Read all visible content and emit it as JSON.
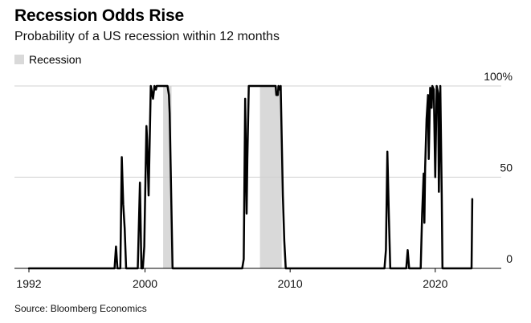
{
  "title": "Recession Odds Rise",
  "subtitle": "Probability of a US recession within 12 months",
  "legend": {
    "recession_label": "Recession"
  },
  "source": "Source: Bloomberg Economics",
  "colors": {
    "line": "#000000",
    "recession": "#d9d9d9",
    "grid": "#d0d0d0",
    "axis": "#000000"
  },
  "chart_data": {
    "type": "line",
    "title": "Recession Odds Rise",
    "subtitle": "Probability of a US recession within 12 months",
    "xlabel": "",
    "ylabel": "",
    "xlim": [
      1992,
      2023.5
    ],
    "ylim": [
      0,
      100
    ],
    "grid": true,
    "x_ticks": [
      1992,
      2000,
      2010,
      2020
    ],
    "x_tick_labels": [
      "1992",
      "2000",
      "2010",
      "2020"
    ],
    "y_ticks": [
      0,
      50,
      100
    ],
    "y_tick_labels": [
      "0",
      "50",
      "100%"
    ],
    "recession_periods": [
      [
        2001.25,
        2001.83
      ],
      [
        2007.92,
        2009.42
      ]
    ],
    "series": [
      {
        "x": [
          1992.0,
          1997.9,
          1998.0,
          1998.1,
          1998.3,
          1998.4,
          1998.5,
          1998.6,
          1998.7,
          1999.5,
          1999.65,
          1999.75,
          1999.85,
          1999.95,
          2000.0,
          2000.1,
          2000.15,
          2000.25,
          2000.4,
          2000.55,
          2000.65,
          2000.75,
          2000.8,
          2000.9,
          2001.0,
          2001.5,
          2001.55,
          2001.65,
          2001.7,
          2001.9,
          2002.0,
          2006.7,
          2006.8,
          2006.9,
          2007.0,
          2007.05,
          2007.15,
          2007.25,
          2007.35,
          2008.0,
          2009.0,
          2009.05,
          2009.15,
          2009.2,
          2009.3,
          2009.35,
          2009.5,
          2009.6,
          2009.7,
          2010.0,
          2016.5,
          2016.6,
          2016.7,
          2016.8,
          2016.9,
          2017.0,
          2018.0,
          2018.1,
          2018.2,
          2018.3,
          2019.0,
          2019.1,
          2019.2,
          2019.25,
          2019.3,
          2019.4,
          2019.5,
          2019.55,
          2019.65,
          2019.75,
          2019.8,
          2019.9,
          2020.0,
          2020.1,
          2020.2,
          2020.25,
          2020.35,
          2020.45,
          2020.5,
          2022.4,
          2022.5,
          2022.55
        ],
        "values": [
          0,
          0,
          12,
          0,
          0,
          61,
          35,
          22,
          0,
          0,
          47,
          0,
          0,
          12,
          35,
          78,
          70,
          40,
          100,
          93,
          100,
          98,
          100,
          100,
          100,
          100,
          100,
          95,
          85,
          0,
          0,
          0,
          5,
          93,
          30,
          60,
          100,
          100,
          100,
          100,
          100,
          95,
          95,
          100,
          98,
          100,
          40,
          15,
          0,
          0,
          0,
          10,
          64,
          30,
          0,
          0,
          0,
          10,
          0,
          0,
          0,
          30,
          52,
          25,
          55,
          82,
          95,
          60,
          99,
          88,
          100,
          98,
          50,
          100,
          96,
          42,
          100,
          40,
          0,
          0,
          0,
          38
        ]
      }
    ]
  }
}
